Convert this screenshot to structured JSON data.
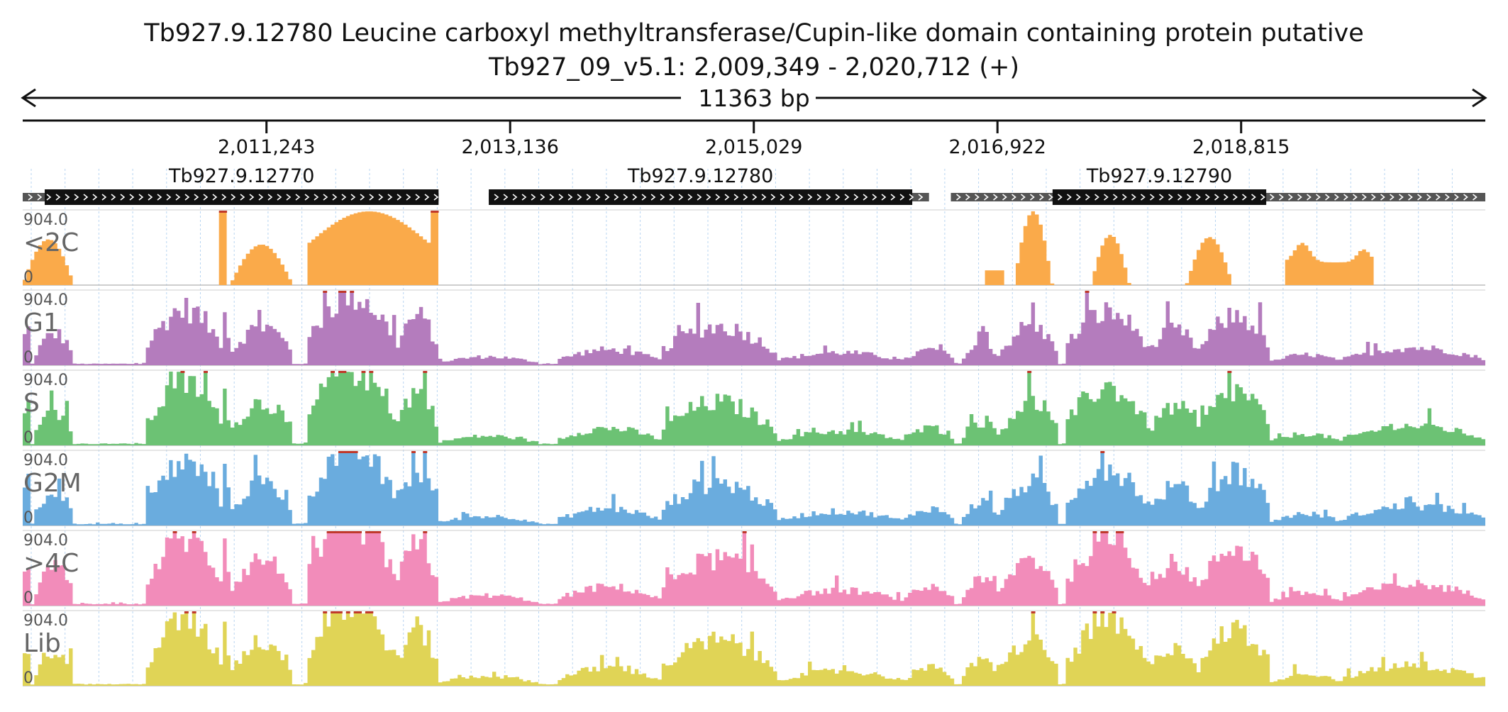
{
  "header": {
    "title": "Tb927.9.12780  Leucine carboxyl methyltransferase/Cupin-like domain containing protein  putative",
    "locus": "Tb927_09_v5.1: 2,009,349 - 2,020,712 (+)",
    "span_label": "11363 bp"
  },
  "colors": {
    "orange": "#FAAA4A",
    "purple": "#B47CBD",
    "green": "#6CC274",
    "blue": "#6AACDE",
    "pink": "#F28CBA",
    "yellow": "#E0D456",
    "clip": "#C0392B"
  },
  "chart_data": {
    "type": "area",
    "region": {
      "start": 2009349,
      "end": 2020712,
      "strand": "+"
    },
    "ticks": [
      {
        "pos": 2011243,
        "label": "2,011,243"
      },
      {
        "pos": 2013136,
        "label": "2,013,136"
      },
      {
        "pos": 2015029,
        "label": "2,015,029"
      },
      {
        "pos": 2016922,
        "label": "2,016,922"
      },
      {
        "pos": 2018815,
        "label": "2,018,815"
      }
    ],
    "genes": [
      {
        "name": "Tb927.9.12770",
        "utr_start": 2009349,
        "cds_start": 2009520,
        "cds_end": 2012580,
        "utr_end": 2012580
      },
      {
        "name": "Tb927.9.12780",
        "utr_start": 2012970,
        "cds_start": 2012970,
        "cds_end": 2016260,
        "utr_end": 2016390
      },
      {
        "name": "Tb927.9.12790",
        "utr_start": 2016560,
        "cds_start": 2017350,
        "cds_end": 2019010,
        "utr_end": 2020712
      }
    ],
    "ymax_label": "904.0",
    "ymin_label": "0",
    "tracks": [
      {
        "name": "<2C",
        "color": "orange"
      },
      {
        "name": "G1",
        "color": "purple"
      },
      {
        "name": "S",
        "color": "green"
      },
      {
        "name": "G2M",
        "color": "blue"
      },
      {
        "name": ">4C",
        "color": "pink"
      },
      {
        "name": "Lib",
        "color": "yellow"
      }
    ],
    "coverage_ymax": 904.0,
    "bins_count": 380,
    "orange_segments": [
      {
        "start": 2009349,
        "end": 2009750,
        "shape": "hump",
        "peak": 0.62
      },
      {
        "start": 2010880,
        "end": 2010930,
        "shape": "flat",
        "peak": 1.0
      },
      {
        "start": 2010960,
        "end": 2011450,
        "shape": "hump",
        "peak": 0.55
      },
      {
        "start": 2011560,
        "end": 2012520,
        "shape": "mountain",
        "peak": 1.0
      },
      {
        "start": 2012530,
        "end": 2012580,
        "shape": "flat",
        "peak": 1.0
      },
      {
        "start": 2016830,
        "end": 2016970,
        "shape": "flat",
        "peak": 0.2
      },
      {
        "start": 2017050,
        "end": 2017350,
        "shape": "hump",
        "peak": 1.0
      },
      {
        "start": 2017650,
        "end": 2017950,
        "shape": "hump",
        "peak": 0.68
      },
      {
        "start": 2018390,
        "end": 2018750,
        "shape": "hump",
        "peak": 0.65
      },
      {
        "start": 2019150,
        "end": 2019850,
        "shape": "dip",
        "peak": 0.88
      }
    ],
    "peaks": [
      {
        "start": 2009349,
        "end": 2009420,
        "peak": 0.55
      },
      {
        "start": 2009450,
        "end": 2009750,
        "peak": 0.45
      },
      {
        "start": 2010320,
        "end": 2010900,
        "peak": 0.8
      },
      {
        "start": 2010900,
        "end": 2010950,
        "peak": 1.0
      },
      {
        "start": 2010970,
        "end": 2011450,
        "peak": 0.55
      },
      {
        "start": 2011560,
        "end": 2012250,
        "peak": 1.0
      },
      {
        "start": 2012250,
        "end": 2012580,
        "peak": 0.7
      },
      {
        "start": 2012580,
        "end": 2013350,
        "peak": 0.12
      },
      {
        "start": 2013500,
        "end": 2014300,
        "peak": 0.22
      },
      {
        "start": 2014300,
        "end": 2015200,
        "peak": 0.55
      },
      {
        "start": 2015200,
        "end": 2016200,
        "peak": 0.18
      },
      {
        "start": 2016200,
        "end": 2016600,
        "peak": 0.22
      },
      {
        "start": 2016650,
        "end": 2016950,
        "peak": 0.3
      },
      {
        "start": 2016950,
        "end": 2017400,
        "peak": 0.55
      },
      {
        "start": 2017450,
        "end": 2018100,
        "peak": 0.75
      },
      {
        "start": 2018100,
        "end": 2018500,
        "peak": 0.5
      },
      {
        "start": 2018500,
        "end": 2019050,
        "peak": 0.7
      },
      {
        "start": 2019050,
        "end": 2019600,
        "peak": 0.15
      },
      {
        "start": 2019600,
        "end": 2020712,
        "peak": 0.25
      }
    ]
  }
}
